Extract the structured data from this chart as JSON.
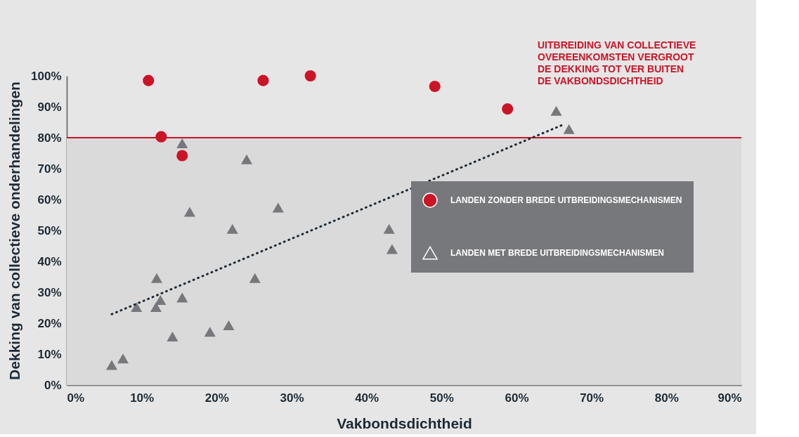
{
  "chart_data": {
    "type": "scatter",
    "xlabel": "Vakbondsdichtheid",
    "ylabel": "Dekking van collectieve onderhandelingen",
    "annotations": [
      "UITBREIDING VAN COLLECTIEVE\nOVEREENKOMSTEN VERGROOT\nDE DEKKING TOT VER BUITEN\nDE VAKBONDSDICHTHEID"
    ],
    "xlim": [
      0,
      90
    ],
    "ylim": [
      0,
      100
    ],
    "xticks": [
      {
        "value": 0,
        "label": "0%"
      },
      {
        "value": 10,
        "label": "10%"
      },
      {
        "value": 20,
        "label": "20%"
      },
      {
        "value": 30,
        "label": "30%"
      },
      {
        "value": 40,
        "label": "40%"
      },
      {
        "value": 50,
        "label": "50%"
      },
      {
        "value": 60,
        "label": "60%"
      },
      {
        "value": 70,
        "label": "70%"
      },
      {
        "value": 80,
        "label": "80%"
      },
      {
        "value": 90,
        "label": "90%"
      }
    ],
    "yticks": [
      {
        "value": 0,
        "label": "0%"
      },
      {
        "value": 10,
        "label": "10%"
      },
      {
        "value": 20,
        "label": "20%"
      },
      {
        "value": 30,
        "label": "30%"
      },
      {
        "value": 40,
        "label": "40%"
      },
      {
        "value": 50,
        "label": "50%"
      },
      {
        "value": 60,
        "label": "60%"
      },
      {
        "value": 70,
        "label": "70%"
      },
      {
        "value": 80,
        "label": "80%"
      },
      {
        "value": 90,
        "label": "90%"
      },
      {
        "value": 100,
        "label": "100%"
      }
    ],
    "grid": false,
    "legend": "right",
    "ref_lines": [
      {
        "axis": "y",
        "value": 80,
        "color": "#cc1427"
      }
    ],
    "bands": [
      {
        "axis": "y",
        "from": 0,
        "to": 80,
        "color": "#dadada"
      }
    ],
    "series": [
      {
        "name": "LANDEN ZONDER BREDE UITBREIDINGSMECHANISMEN",
        "marker": "circle",
        "color": "#cc1427",
        "x": [
          10.9,
          26.2,
          32.5,
          49.1,
          58.8,
          12.6,
          15.4
        ],
        "values": [
          98.5,
          98.5,
          100,
          96.6,
          89.3,
          80.3,
          74.2
        ]
      },
      {
        "name": "LANDEN MET BREDE UITBREIDINGSMECHANISMEN",
        "marker": "triangle",
        "color": "#77787c",
        "x": [
          15.4,
          24.0,
          16.4,
          28.2,
          22.1,
          43.0,
          43.4,
          12.0,
          12.5,
          9.3,
          11.9,
          25.1,
          15.4,
          14.1,
          19.1,
          21.6,
          6.0,
          7.5,
          65.3,
          67.0
        ],
        "values": [
          78.2,
          73,
          56,
          57.4,
          50.5,
          50.5,
          44,
          34.6,
          27.5,
          25.2,
          25.2,
          34.6,
          28.3,
          15.7,
          17.2,
          19.3,
          6.5,
          8.6,
          88.7,
          82.8
        ]
      },
      {
        "type": "line",
        "line_style": "dotted",
        "color": "#1c2a36",
        "x": [
          6.0,
          66.5
        ],
        "values": [
          22.9,
          84.5
        ]
      }
    ]
  }
}
